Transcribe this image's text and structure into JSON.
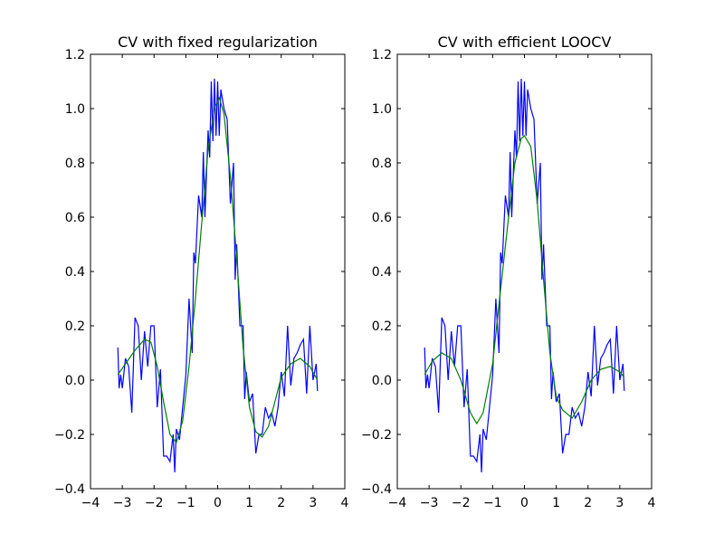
{
  "chart_data": [
    {
      "type": "line",
      "title": "CV with fixed regularization",
      "xlim": [
        -4,
        4
      ],
      "ylim": [
        -0.4,
        1.2
      ],
      "xticks": [
        {
          "value": -4,
          "label": "−4"
        },
        {
          "value": -3,
          "label": "−3"
        },
        {
          "value": -2,
          "label": "−2"
        },
        {
          "value": -1,
          "label": "−1"
        },
        0,
        1,
        2,
        3,
        4
      ],
      "yticks": [
        {
          "value": -0.4,
          "label": "−0.4"
        },
        {
          "value": -0.2,
          "label": "−0.2"
        },
        {
          "value": 0,
          "label": "0.0"
        },
        0.2,
        0.4,
        0.6,
        0.8,
        {
          "value": 1,
          "label": "1.0"
        },
        1.2
      ],
      "series": [
        {
          "color": "#0000ff",
          "x": [
            -3.14,
            -3.1,
            -3.05,
            -3.0,
            -2.9,
            -2.8,
            -2.7,
            -2.6,
            -2.5,
            -2.4,
            -2.3,
            -2.2,
            -2.1,
            -2.0,
            -1.9,
            -1.8,
            -1.7,
            -1.6,
            -1.5,
            -1.4,
            -1.35,
            -1.3,
            -1.2,
            -1.1,
            -1.0,
            -0.9,
            -0.8,
            -0.75,
            -0.7,
            -0.6,
            -0.5,
            -0.45,
            -0.4,
            -0.3,
            -0.25,
            -0.2,
            -0.15,
            -0.1,
            -0.05,
            0.0,
            0.05,
            0.1,
            0.2,
            0.3,
            0.4,
            0.5,
            0.55,
            0.6,
            0.7,
            0.8,
            0.85,
            0.9,
            1.0,
            1.1,
            1.2,
            1.3,
            1.4,
            1.5,
            1.6,
            1.7,
            1.8,
            1.9,
            2.0,
            2.1,
            2.2,
            2.3,
            2.4,
            2.5,
            2.6,
            2.7,
            2.8,
            2.9,
            3.0,
            3.1,
            3.14
          ],
          "values": [
            0.12,
            -0.03,
            0.02,
            -0.03,
            0.08,
            0.05,
            -0.12,
            0.23,
            0.2,
            0.0,
            0.18,
            0.05,
            0.2,
            0.2,
            -0.1,
            0.04,
            -0.28,
            -0.28,
            -0.3,
            -0.2,
            -0.34,
            -0.18,
            -0.22,
            -0.1,
            0.02,
            0.3,
            0.1,
            0.47,
            0.43,
            0.68,
            0.6,
            0.84,
            0.6,
            0.92,
            0.82,
            1.1,
            0.88,
            1.11,
            0.9,
            1.1,
            0.9,
            1.07,
            1.0,
            0.96,
            0.65,
            0.8,
            0.37,
            0.5,
            0.2,
            0.2,
            -0.07,
            0.03,
            -0.08,
            -0.05,
            -0.27,
            -0.2,
            -0.2,
            -0.1,
            -0.14,
            -0.12,
            -0.17,
            -0.1,
            0.03,
            -0.06,
            0.2,
            -0.02,
            0.08,
            0.1,
            0.13,
            0.15,
            -0.05,
            0.2,
            0.0,
            0.06,
            -0.04
          ]
        },
        {
          "color": "#008000",
          "x": [
            -3.14,
            -2.9,
            -2.6,
            -2.3,
            -2.1,
            -1.9,
            -1.7,
            -1.5,
            -1.3,
            -1.1,
            -0.9,
            -0.7,
            -0.5,
            -0.3,
            -0.1,
            0.05,
            0.2,
            0.4,
            0.6,
            0.8,
            1.0,
            1.2,
            1.4,
            1.6,
            1.8,
            2.0,
            2.3,
            2.6,
            2.9,
            3.14
          ],
          "values": [
            0.02,
            0.06,
            0.11,
            0.15,
            0.14,
            0.05,
            -0.08,
            -0.2,
            -0.23,
            -0.15,
            0.05,
            0.3,
            0.58,
            0.85,
            1.0,
            1.04,
            0.98,
            0.75,
            0.45,
            0.12,
            -0.1,
            -0.19,
            -0.21,
            -0.17,
            -0.08,
            0.01,
            0.06,
            0.08,
            0.05,
            0.0
          ]
        }
      ]
    },
    {
      "type": "line",
      "title": "CV with efficient LOOCV",
      "xlim": [
        -4,
        4
      ],
      "ylim": [
        -0.4,
        1.2
      ],
      "xticks": [
        {
          "value": -4,
          "label": "−4"
        },
        {
          "value": -3,
          "label": "−3"
        },
        {
          "value": -2,
          "label": "−2"
        },
        {
          "value": -1,
          "label": "−1"
        },
        0,
        1,
        2,
        3,
        4
      ],
      "yticks": [
        {
          "value": -0.4,
          "label": "−0.4"
        },
        {
          "value": -0.2,
          "label": "−0.2"
        },
        {
          "value": 0,
          "label": "0.0"
        },
        0.2,
        0.4,
        0.6,
        0.8,
        {
          "value": 1,
          "label": "1.0"
        },
        1.2
      ],
      "series": [
        {
          "color": "#0000ff",
          "x": [
            -3.14,
            -3.1,
            -3.05,
            -3.0,
            -2.9,
            -2.8,
            -2.7,
            -2.6,
            -2.5,
            -2.4,
            -2.3,
            -2.2,
            -2.1,
            -2.0,
            -1.9,
            -1.8,
            -1.7,
            -1.6,
            -1.5,
            -1.4,
            -1.35,
            -1.3,
            -1.2,
            -1.1,
            -1.0,
            -0.9,
            -0.8,
            -0.75,
            -0.7,
            -0.6,
            -0.5,
            -0.45,
            -0.4,
            -0.3,
            -0.25,
            -0.2,
            -0.15,
            -0.1,
            -0.05,
            0.0,
            0.05,
            0.1,
            0.2,
            0.3,
            0.4,
            0.5,
            0.55,
            0.6,
            0.7,
            0.8,
            0.85,
            0.9,
            1.0,
            1.1,
            1.2,
            1.3,
            1.4,
            1.5,
            1.6,
            1.7,
            1.8,
            1.9,
            2.0,
            2.1,
            2.2,
            2.3,
            2.4,
            2.5,
            2.6,
            2.7,
            2.8,
            2.9,
            3.0,
            3.1,
            3.14
          ],
          "values": [
            0.12,
            -0.03,
            0.02,
            -0.03,
            0.08,
            0.05,
            -0.12,
            0.23,
            0.2,
            0.0,
            0.18,
            0.05,
            0.2,
            0.2,
            -0.1,
            0.04,
            -0.28,
            -0.28,
            -0.3,
            -0.2,
            -0.34,
            -0.18,
            -0.22,
            -0.1,
            0.02,
            0.3,
            0.1,
            0.47,
            0.43,
            0.68,
            0.6,
            0.84,
            0.6,
            0.92,
            0.82,
            1.1,
            0.88,
            1.11,
            0.9,
            1.1,
            0.9,
            1.07,
            1.0,
            0.96,
            0.65,
            0.8,
            0.37,
            0.5,
            0.2,
            0.2,
            -0.07,
            0.03,
            -0.08,
            -0.05,
            -0.27,
            -0.2,
            -0.2,
            -0.1,
            -0.14,
            -0.12,
            -0.17,
            -0.1,
            0.03,
            -0.06,
            0.2,
            -0.02,
            0.08,
            0.1,
            0.13,
            0.15,
            -0.05,
            0.2,
            0.0,
            0.06,
            -0.04
          ]
        },
        {
          "color": "#008000",
          "x": [
            -3.14,
            -2.9,
            -2.6,
            -2.3,
            -2.0,
            -1.7,
            -1.5,
            -1.3,
            -1.0,
            -0.8,
            -0.5,
            -0.3,
            -0.1,
            0.0,
            0.2,
            0.4,
            0.6,
            0.8,
            1.0,
            1.2,
            1.5,
            1.8,
            2.1,
            2.4,
            2.7,
            3.0,
            3.14
          ],
          "values": [
            0.02,
            0.07,
            0.1,
            0.08,
            0.0,
            -0.12,
            -0.16,
            -0.12,
            0.06,
            0.28,
            0.6,
            0.8,
            0.89,
            0.9,
            0.86,
            0.66,
            0.37,
            0.1,
            -0.06,
            -0.11,
            -0.14,
            -0.08,
            0.0,
            0.04,
            0.05,
            0.03,
            0.01
          ]
        }
      ]
    }
  ]
}
